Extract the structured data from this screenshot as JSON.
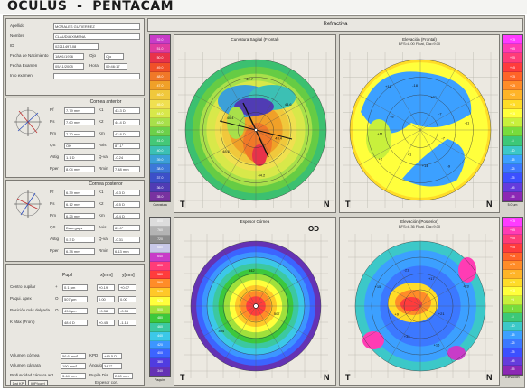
{
  "title": "OCULUS  -  PENTACAM",
  "patient": {
    "apellido_label": "Apellido",
    "apellido_value": "MORALES GUTIERREZ",
    "nombre_label": "Nombre",
    "nombre_value": "CLAUDIA XIMENA",
    "id_label": "ID",
    "id_value": "02211497-08",
    "fecha_nac_label": "Fecha de Nacimiento",
    "fecha_nac_value": "18/01/1976",
    "ojo_label": "Ojo",
    "ojo_value": "Ojo",
    "fecha_exam_label": "Fecha Examen",
    "fecha_exam_value": "05/11/2008",
    "hora_label": "Hora",
    "hora_value": "09:46:17",
    "info_label": "Info examen"
  },
  "cornea_anterior": {
    "header": "Cornea anterior",
    "rows": [
      {
        "l1": "Rf",
        "v1": "7.79 mm",
        "l2": "K1",
        "v2": "43.3 D"
      },
      {
        "l1": "Rs",
        "v1": "7.60 mm",
        "l2": "K2",
        "v2": "44.4 D"
      },
      {
        "l1": "Rm",
        "v1": "7.70 mm",
        "l2": "Km",
        "v2": "43.8 D"
      },
      {
        "l1": "QS",
        "v1": "OK",
        "l2": "Axis",
        "v2": "87.1°"
      },
      {
        "l1": "Astig",
        "v1": "1.1 D",
        "l2": "Q-val",
        "v2": "-0.24"
      },
      {
        "l1": "Rper",
        "v1": "8.04 mm",
        "l2": "Rmin",
        "v2": "7.48 mm"
      }
    ]
  },
  "cornea_posterior": {
    "header": "Cornea posterior",
    "rows": [
      {
        "l1": "Rf",
        "v1": "6.39 mm",
        "l2": "K1",
        "v2": "-6.3 D"
      },
      {
        "l1": "Rs",
        "v1": "6.12 mm",
        "l2": "K2",
        "v2": "-6.5 D"
      },
      {
        "l1": "Rm",
        "v1": "6.25 mm",
        "l2": "Km",
        "v2": "-6.4 D"
      },
      {
        "l1": "QS",
        "v1": "Data gaps",
        "l2": "Axis",
        "v2": "89.0°"
      },
      {
        "l1": "Astig",
        "v1": "0.3 D",
        "l2": "Q-val",
        "v2": "-0.31"
      },
      {
        "l1": "Rper",
        "v1": "6.38 mm",
        "l2": "Rmin",
        "v2": "6.13 mm"
      }
    ]
  },
  "pupil": {
    "col_header": "Pupil",
    "col_x": "x[mm]",
    "col_y": "y[mm]",
    "rows": [
      {
        "label": "Centro pupilar",
        "sym": "+",
        "v": "0.1 µm",
        "x": "+0.19",
        "y": "+0.07"
      },
      {
        "label": "Paqui. ápex",
        "sym": "O",
        "v": "507 µm",
        "x": "0.00",
        "y": "0.00"
      },
      {
        "label": "Posición más delgada",
        "sym": "O",
        "v": "494 µm",
        "x": "+0.38",
        "y": "-0.55"
      },
      {
        "label": "K Max (Front)",
        "sym": "",
        "v": "48.6 D",
        "x": "+0.45",
        "y": "-1.16"
      }
    ],
    "vol_label": "Volumen córnea",
    "vol_value": "56.6 mm³",
    "kpd_label": "KPD",
    "kpd_value": "+49.5 D",
    "vol_cam_label": "Volumen cámara",
    "vol_cam_value": "190 mm³",
    "angle_label": "Ángulo",
    "angle_value": "34.7°",
    "prof_label": "Profundidad cámara ant",
    "prof_value": "3.44 mm",
    "pupil_dia_label": "Pupila Dia",
    "pupil_dia_value": "2.40 mm",
    "btn_kp": "Dat KP",
    "btn_iop": "IOP(corr)",
    "espesor_label": "Espesor cor.",
    "od": "OD"
  },
  "maps": {
    "header": "Refractiva",
    "m1_title": "Curvatura Sagital (Frontal)",
    "m2_title": "Elevación (Frontal)",
    "m2_sub": "BFS=8.00 Float, Dia=9.00",
    "m3_title": "Espesor Córnea",
    "m4_title": "Elevación (Posterior)",
    "m4_sub": "BFS=6.36 Float, Dia=9.00",
    "od": "OD",
    "t": "T",
    "n": "N",
    "m1_values": [
      "43.4",
      "44.2",
      "48.6",
      "40.4",
      "42.7",
      "44.6"
    ],
    "m2_values": [
      "-7",
      "-9",
      "+14",
      "+1",
      "+2",
      "+11",
      "+8",
      "+18",
      "-18",
      "+31",
      "-7",
      "-11"
    ],
    "m3_values": [
      "507",
      "494",
      "542"
    ],
    "m4_values": [
      "+21",
      "+16",
      "+33",
      "+9",
      "+15",
      "-21",
      "+17",
      "+23"
    ]
  },
  "scales": {
    "s1": {
      "caption": "Curvatura",
      "unit": "Abs",
      "values": [
        "52.0",
        "51.0",
        "50.0",
        "49.0",
        "48.0",
        "47.0",
        "46.0",
        "45.0",
        "44.0",
        "43.0",
        "42.0",
        "41.0",
        "40.0",
        "39.0",
        "38.0",
        "37.0",
        "36.0",
        "35.0"
      ]
    },
    "s2": {
      "caption": "5.0 µm",
      "unit": "Elevación Abs",
      "values": [
        "+75",
        "+65",
        "+55",
        "+45",
        "+35",
        "+25",
        "+20",
        "+15",
        "+10",
        "+5",
        "0",
        "-5",
        "-10",
        "-15",
        "-25",
        "-35",
        "-45",
        "-55"
      ]
    },
    "s3": {
      "caption": "Paquim",
      "unit": "Abs",
      "values": [
        "800",
        "760",
        "720",
        "680",
        "640",
        "600",
        "580",
        "560",
        "540",
        "520",
        "500",
        "480",
        "460",
        "440",
        "420",
        "400",
        "380",
        "340"
      ]
    },
    "s4": {
      "caption": "Elevación",
      "unit": "Abs",
      "values": [
        "+75",
        "+65",
        "+55",
        "+45",
        "+35",
        "+25",
        "+20",
        "+15",
        "+10",
        "+5",
        "0",
        "-5",
        "-10",
        "-15",
        "-25",
        "-35",
        "-45",
        "-55"
      ]
    }
  },
  "colors": {
    "scale1": [
      "#c83cc8",
      "#e03ca0",
      "#e8324a",
      "#f05028",
      "#f07828",
      "#f0a028",
      "#f0c83c",
      "#f0e050",
      "#d8e84a",
      "#a8e04a",
      "#6cd04a",
      "#44c878",
      "#3cc0b4",
      "#3ca0d8",
      "#3c78d8",
      "#3c50c8",
      "#503cb4",
      "#7832a0"
    ],
    "scale2": [
      "#ff3cff",
      "#ff3cb4",
      "#ff3c78",
      "#ff3c3c",
      "#ff6428",
      "#ff8c28",
      "#ffb428",
      "#ffdc28",
      "#ffff3c",
      "#c8f03c",
      "#78dc3c",
      "#3cc878",
      "#3cc8c8",
      "#3ca0ff",
      "#3c78ff",
      "#3c50ff",
      "#643cdc",
      "#8c28b4"
    ],
    "scale3": [
      "#dcdcdc",
      "#b4b4b4",
      "#8c8c8c",
      "#c8c8e8",
      "#c83cc8",
      "#ff3c78",
      "#ff3c3c",
      "#ff8c28",
      "#ffc828",
      "#ffff3c",
      "#a0e03c",
      "#3cc83c",
      "#3cc8a0",
      "#3cc8e8",
      "#3c96ff",
      "#3c64ff",
      "#503ce0",
      "#6432b4"
    ],
    "scale4": [
      "#ff3cff",
      "#ff3cb4",
      "#ff3c78",
      "#ff3c3c",
      "#ff6428",
      "#ff8c28",
      "#ffb428",
      "#ffdc28",
      "#ffff3c",
      "#c8f03c",
      "#78dc3c",
      "#3cc878",
      "#3cc8c8",
      "#3ca0ff",
      "#3c78ff",
      "#3c50ff",
      "#643cdc",
      "#8c28b4"
    ]
  }
}
